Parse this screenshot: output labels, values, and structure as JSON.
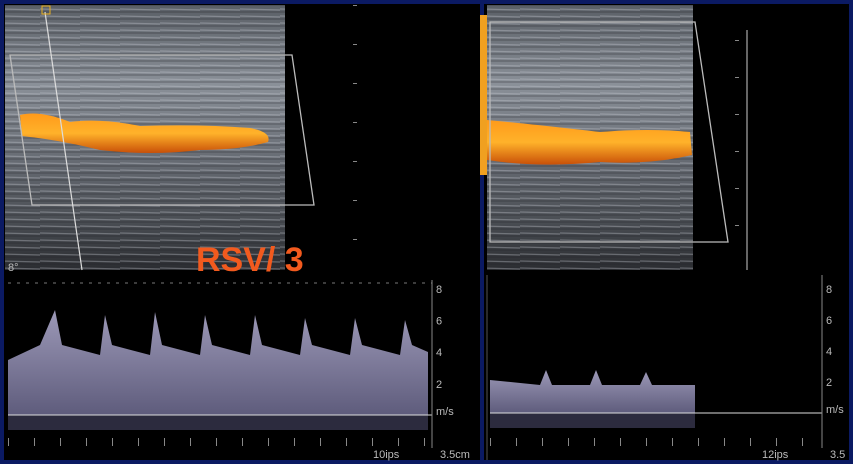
{
  "overlay_label": "RSV/ 3",
  "left_panel": {
    "angle": "8°",
    "scale_ticks": [
      8,
      6,
      4,
      2
    ],
    "unit": "m/s",
    "sweep": "10ips",
    "depth": "3.5cm"
  },
  "right_panel": {
    "scale_ticks": [
      8,
      6,
      4,
      2
    ],
    "unit": "m/s",
    "sweep": "12ips",
    "depth": "3.5"
  }
}
